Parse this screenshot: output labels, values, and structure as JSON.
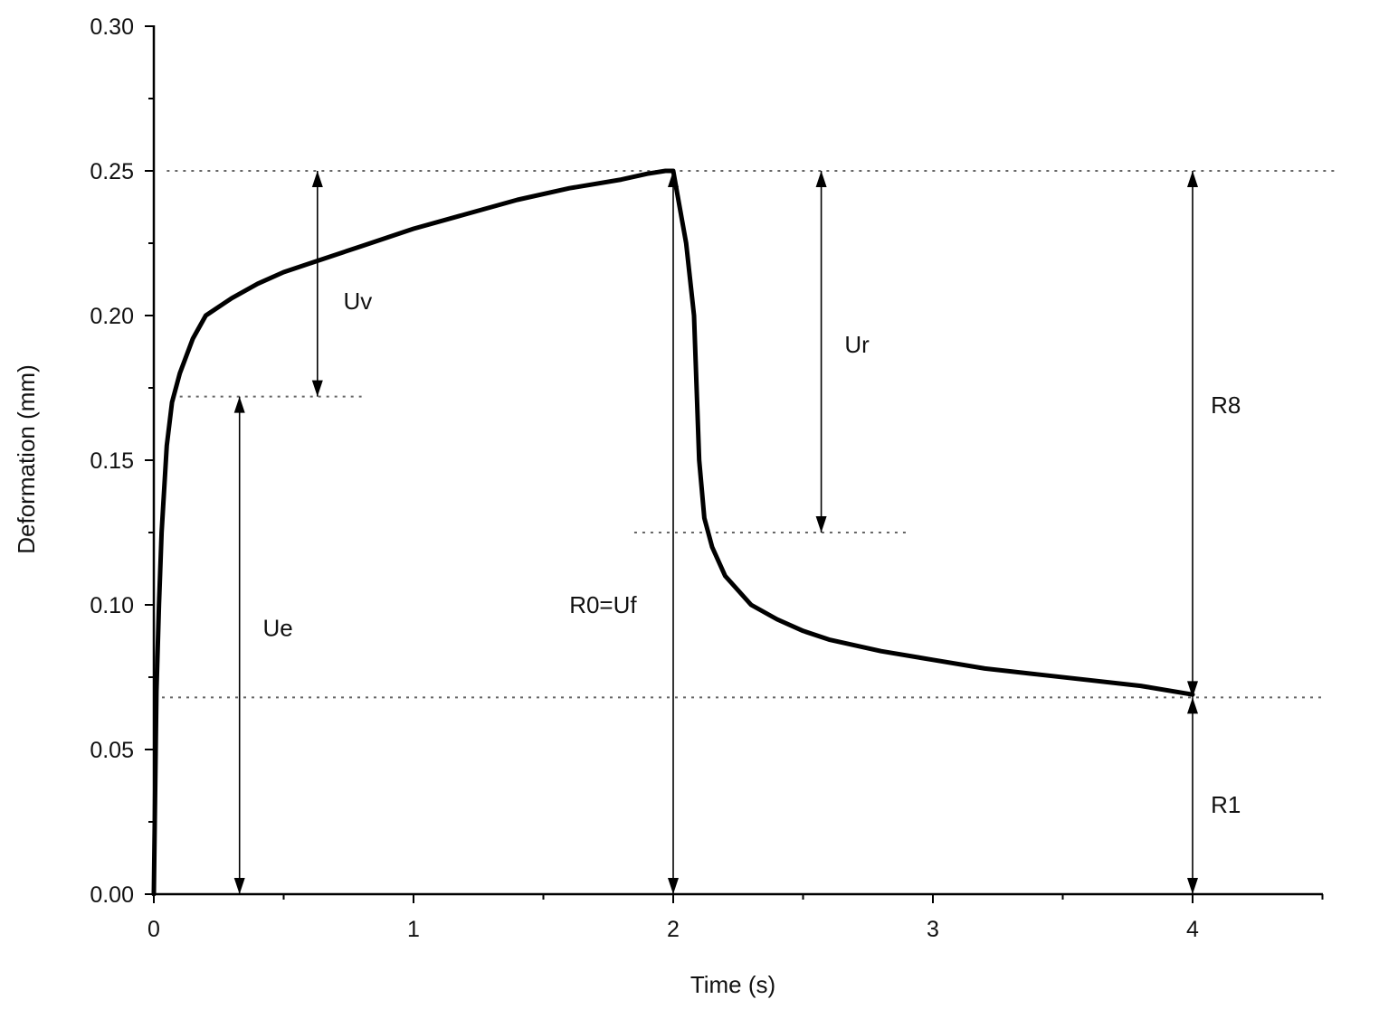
{
  "chart_data": {
    "type": "line",
    "title": "",
    "xlabel": "Time (s)",
    "ylabel": "Deformation (mm)",
    "xlim": [
      0,
      4.5
    ],
    "ylim": [
      0,
      0.3
    ],
    "x_ticks": [
      0,
      1,
      2,
      3,
      4
    ],
    "x_tick_labels": [
      "0",
      "1",
      "2",
      "3",
      "4"
    ],
    "y_ticks": [
      0,
      0.05,
      0.1,
      0.15,
      0.2,
      0.25,
      0.3
    ],
    "y_tick_labels": [
      "0.00",
      "0.05",
      "0.10",
      "0.15",
      "0.20",
      "0.25",
      "0.30"
    ],
    "grid": false,
    "legend": "none",
    "series": [
      {
        "color": "#000000",
        "x": [
          0,
          0.01,
          0.02,
          0.03,
          0.05,
          0.07,
          0.1,
          0.15,
          0.2,
          0.3,
          0.4,
          0.5,
          0.6,
          0.8,
          1.0,
          1.2,
          1.4,
          1.6,
          1.8,
          1.9,
          1.97,
          2.0,
          2.02,
          2.05,
          2.08,
          2.1,
          2.12,
          2.15,
          2.2,
          2.3,
          2.4,
          2.5,
          2.6,
          2.8,
          3.0,
          3.2,
          3.4,
          3.6,
          3.8,
          4.0
        ],
        "y": [
          0,
          0.07,
          0.1,
          0.125,
          0.155,
          0.17,
          0.18,
          0.192,
          0.2,
          0.206,
          0.211,
          0.215,
          0.218,
          0.224,
          0.23,
          0.235,
          0.24,
          0.244,
          0.247,
          0.249,
          0.25,
          0.25,
          0.24,
          0.225,
          0.2,
          0.15,
          0.13,
          0.12,
          0.11,
          0.1,
          0.095,
          0.091,
          0.088,
          0.084,
          0.081,
          0.078,
          0.076,
          0.074,
          0.072,
          0.069
        ]
      }
    ],
    "reference_lines": [
      {
        "y": 0.25,
        "x_from": 0.05,
        "x_to": 4.55
      },
      {
        "y": 0.172,
        "x_from": 0.1,
        "x_to": 0.8
      },
      {
        "y": 0.125,
        "x_from": 1.85,
        "x_to": 2.9
      },
      {
        "y": 0.068,
        "x_from": 0.0,
        "x_to": 4.5
      }
    ],
    "annotations": [
      {
        "label": "Uv",
        "arrow_x": 0.63,
        "y_from": 0.25,
        "y_to": 0.172,
        "text_x": 0.73,
        "text_y": 0.205,
        "heads": "both"
      },
      {
        "label": "Ue",
        "arrow_x": 0.33,
        "y_from": 0.172,
        "y_to": 0.0,
        "text_x": 0.42,
        "text_y": 0.092,
        "heads": "both"
      },
      {
        "label": "R0=Uf",
        "arrow_x": 2.0,
        "y_from": 0.25,
        "y_to": 0.0,
        "text_x": 1.6,
        "text_y": 0.1,
        "heads": "both"
      },
      {
        "label": "Ur",
        "arrow_x": 2.57,
        "y_from": 0.25,
        "y_to": 0.125,
        "text_x": 2.66,
        "text_y": 0.19,
        "heads": "both"
      },
      {
        "label": "R8",
        "arrow_x": 4.0,
        "y_from": 0.25,
        "y_to": 0.068,
        "text_x": 4.07,
        "text_y": 0.169,
        "heads": "both"
      },
      {
        "label": "R1",
        "arrow_x": 4.0,
        "y_from": 0.068,
        "y_to": 0.0,
        "text_x": 4.07,
        "text_y": 0.031,
        "heads": "both"
      }
    ]
  }
}
